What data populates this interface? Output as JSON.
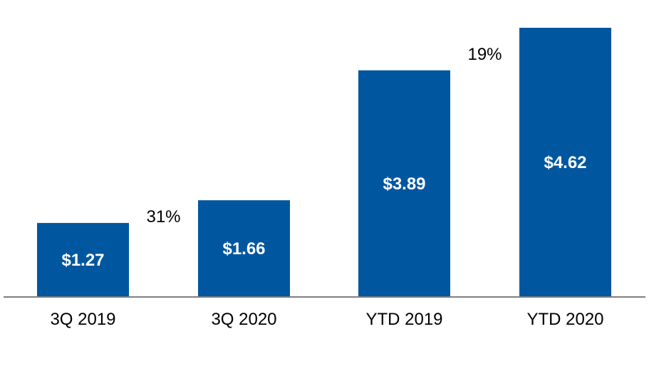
{
  "chart_data": {
    "type": "bar",
    "categories": [
      "3Q 2019",
      "3Q 2020",
      "YTD 2019",
      "YTD 2020"
    ],
    "values": [
      1.27,
      1.66,
      3.89,
      4.62
    ],
    "value_labels": [
      "$1.27",
      "$1.66",
      "$3.89",
      "$4.62"
    ],
    "ylim": [
      0,
      4.95
    ],
    "grid": false,
    "bar_color": "#0057A0",
    "axis_color": "#7F7F7F",
    "growth_annotations": [
      {
        "text": "31%",
        "from": 0,
        "to": 1
      },
      {
        "text": "19%",
        "from": 2,
        "to": 3
      }
    ]
  }
}
